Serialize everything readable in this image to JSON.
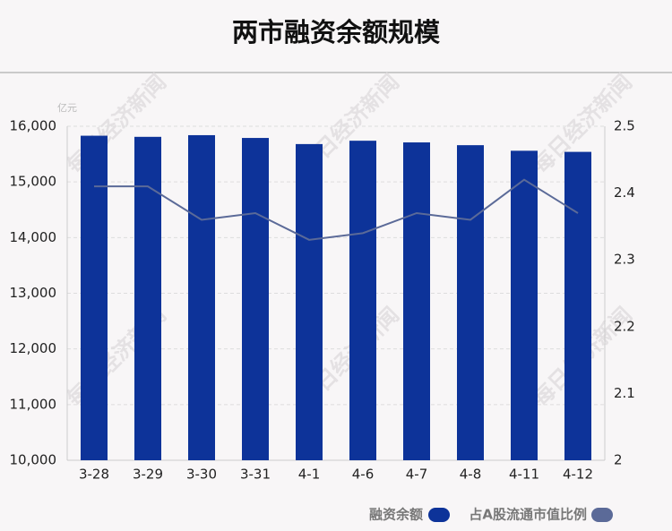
{
  "chart_data": {
    "type": "bar_line",
    "title": "两市融资余额规模",
    "y_unit": "亿元",
    "watermark": "每日经济新闻",
    "categories": [
      "3-28",
      "3-29",
      "3-30",
      "3-31",
      "4-1",
      "4-6",
      "4-7",
      "4-8",
      "4-11",
      "4-12"
    ],
    "series": [
      {
        "name": "融资余额",
        "color": "#0d3399",
        "type": "bar",
        "values": [
          15830,
          15810,
          15840,
          15790,
          15680,
          15740,
          15710,
          15660,
          15560,
          15540
        ]
      },
      {
        "name": "占A股流通市值比例",
        "color": "#5b6a98",
        "type": "line",
        "axis": "y2",
        "values": [
          2.41,
          2.41,
          2.36,
          2.37,
          2.33,
          2.34,
          2.37,
          2.36,
          2.42,
          2.37
        ]
      }
    ],
    "ylim": [
      10000,
      16000
    ],
    "yticks": [
      {
        "value": 10000,
        "label": "10,000"
      },
      {
        "value": 11000,
        "label": "11,000"
      },
      {
        "value": 12000,
        "label": "12,000"
      },
      {
        "value": 13000,
        "label": "13,000"
      },
      {
        "value": 14000,
        "label": "14,000"
      },
      {
        "value": 15000,
        "label": "15,000"
      },
      {
        "value": 16000,
        "label": "16,000"
      }
    ],
    "y2lim": [
      2,
      2.5
    ],
    "y2ticks": [
      2,
      2.1,
      2.2,
      2.3,
      2.4,
      2.5
    ],
    "grid": true
  }
}
